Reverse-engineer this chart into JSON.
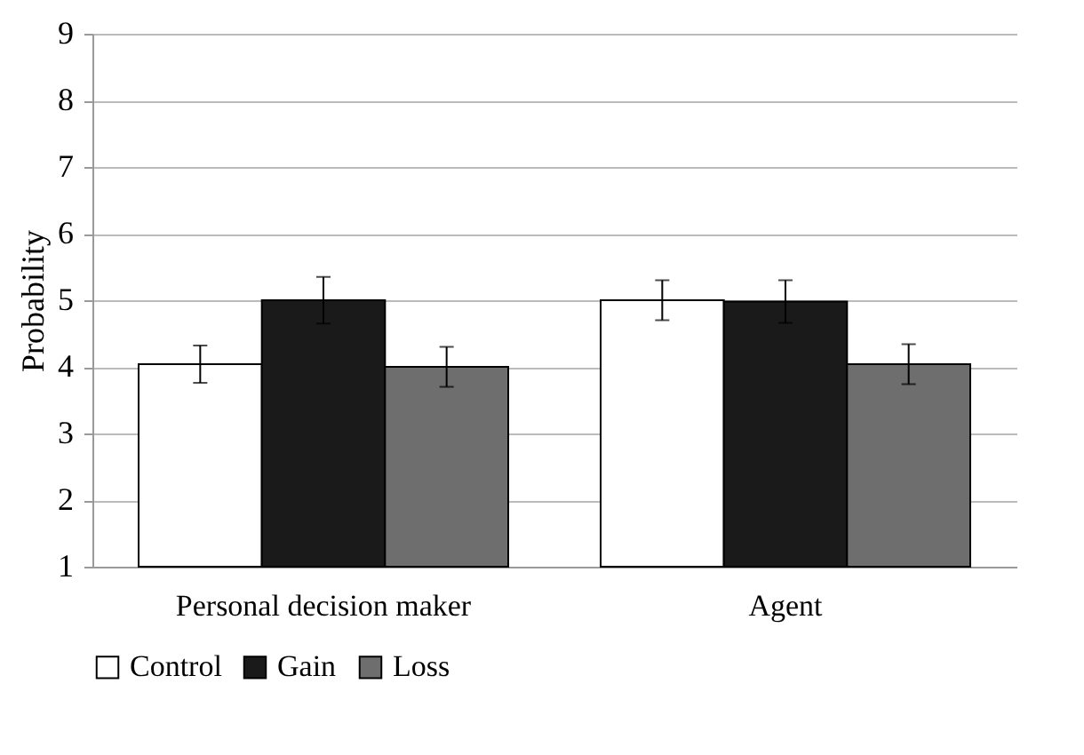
{
  "chart_data": {
    "type": "bar",
    "ylabel": "Probability",
    "categories": [
      "Personal decision maker",
      "Agent"
    ],
    "series": [
      {
        "name": "Control",
        "color": "#ffffff",
        "values": [
          4.04,
          5.0
        ],
        "errors": [
          0.28,
          0.3
        ]
      },
      {
        "name": "Gain",
        "color": "#1a1a1a",
        "values": [
          5.0,
          4.98
        ],
        "errors": [
          0.35,
          0.32
        ]
      },
      {
        "name": "Loss",
        "color": "#6e6e6e",
        "values": [
          4.0,
          4.04
        ],
        "errors": [
          0.3,
          0.3
        ]
      }
    ],
    "ylim": [
      1,
      9
    ],
    "yticks": [
      1,
      2,
      3,
      4,
      5,
      6,
      7,
      8,
      9
    ],
    "grid": "y",
    "legend": "bottom"
  }
}
